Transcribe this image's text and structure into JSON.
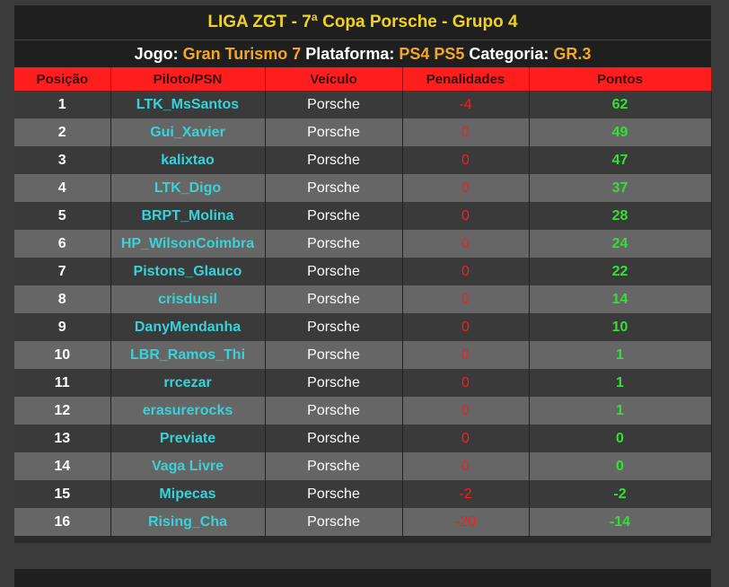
{
  "header": {
    "title": "LIGA ZGT - 7ª Copa Porsche - Grupo 4",
    "jogo_label": "Jogo:",
    "jogo_value": "Gran Turismo 7",
    "plataforma_label": "Plataforma:",
    "plataforma_value": "PS4 PS5",
    "categoria_label": "Categoria:",
    "categoria_value": "GR.3"
  },
  "columns": [
    "Posição",
    "Piloto/PSN",
    "Veículo",
    "Penalidades",
    "Pontos"
  ],
  "rows": [
    {
      "pos": "1",
      "pilot": "LTK_MsSantos",
      "vehicle": "Porsche",
      "penalty": "-4",
      "points": "62"
    },
    {
      "pos": "2",
      "pilot": "Gui_Xavier",
      "vehicle": "Porsche",
      "penalty": "0",
      "points": "49"
    },
    {
      "pos": "3",
      "pilot": "kalixtao",
      "vehicle": "Porsche",
      "penalty": "0",
      "points": "47"
    },
    {
      "pos": "4",
      "pilot": "LTK_Digo",
      "vehicle": "Porsche",
      "penalty": "0",
      "points": "37"
    },
    {
      "pos": "5",
      "pilot": "BRPT_Molina",
      "vehicle": "Porsche",
      "penalty": "0",
      "points": "28"
    },
    {
      "pos": "6",
      "pilot": "HP_WilsonCoimbra",
      "vehicle": "Porsche",
      "penalty": "0",
      "points": "24"
    },
    {
      "pos": "7",
      "pilot": "Pistons_Glauco",
      "vehicle": "Porsche",
      "penalty": "0",
      "points": "22"
    },
    {
      "pos": "8",
      "pilot": "crisdusil",
      "vehicle": "Porsche",
      "penalty": "0",
      "points": "14"
    },
    {
      "pos": "9",
      "pilot": "DanyMendanha",
      "vehicle": "Porsche",
      "penalty": "0",
      "points": "10"
    },
    {
      "pos": "10",
      "pilot": "LBR_Ramos_Thi",
      "vehicle": "Porsche",
      "penalty": "0",
      "points": "1"
    },
    {
      "pos": "11",
      "pilot": "rrcezar",
      "vehicle": "Porsche",
      "penalty": "0",
      "points": "1"
    },
    {
      "pos": "12",
      "pilot": "erasurerocks",
      "vehicle": "Porsche",
      "penalty": "0",
      "points": "1"
    },
    {
      "pos": "13",
      "pilot": "Previate",
      "vehicle": "Porsche",
      "penalty": "0",
      "points": "0"
    },
    {
      "pos": "14",
      "pilot": "Vaga Livre",
      "vehicle": "Porsche",
      "penalty": "0",
      "points": "0"
    },
    {
      "pos": "15",
      "pilot": "Mipecas",
      "vehicle": "Porsche",
      "penalty": "-2",
      "points": "-2"
    },
    {
      "pos": "16",
      "pilot": "Rising_Cha",
      "vehicle": "Porsche",
      "penalty": "-20",
      "points": "-14"
    }
  ]
}
